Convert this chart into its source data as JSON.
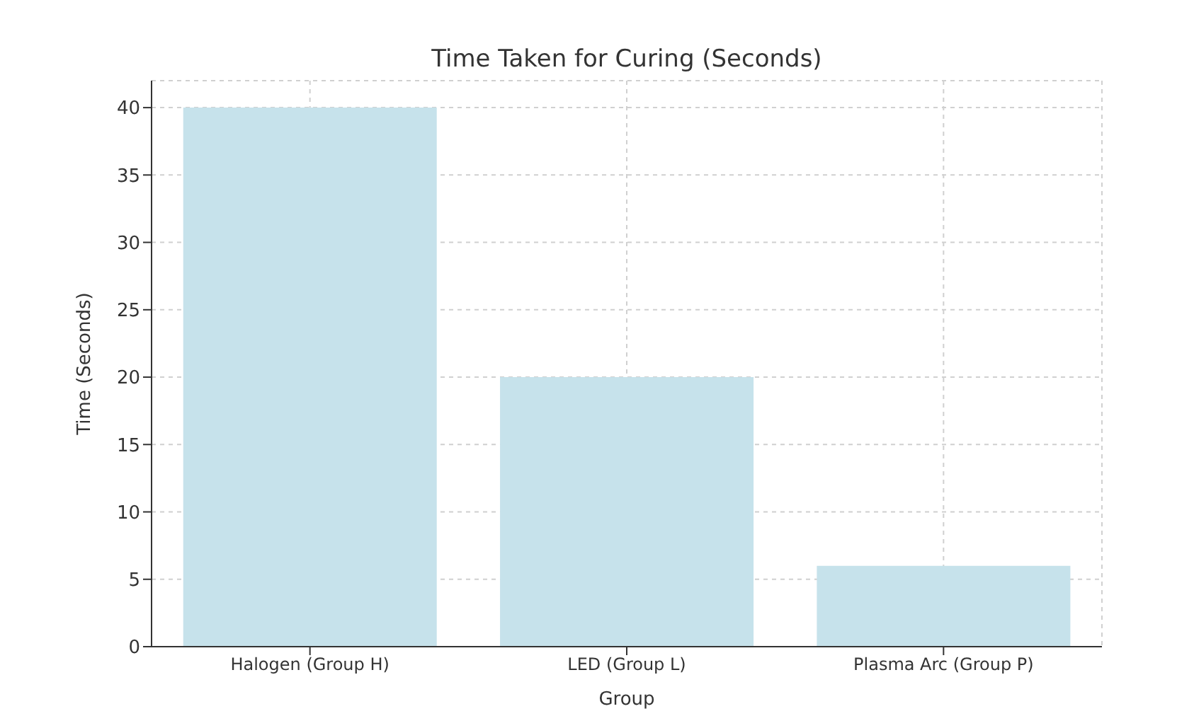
{
  "chart_data": {
    "type": "bar",
    "title": "Time Taken for Curing (Seconds)",
    "xlabel": "Group",
    "ylabel": "Time (Seconds)",
    "categories": [
      "Halogen (Group H)",
      "LED (Group L)",
      "Plasma Arc (Group P)"
    ],
    "values": [
      40,
      20,
      6
    ],
    "color": "#c6e2eb",
    "ylim": [
      0,
      42
    ],
    "yticks": [
      0,
      5,
      10,
      15,
      20,
      25,
      30,
      35,
      40
    ],
    "grid": true
  }
}
